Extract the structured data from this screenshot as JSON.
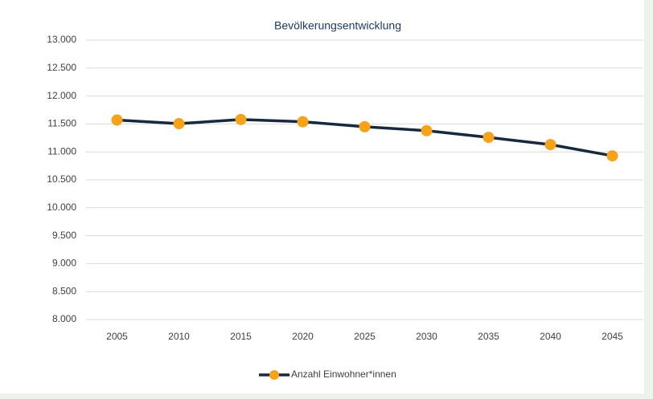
{
  "chart_data": {
    "type": "line",
    "title": "Bevölkerungsentwicklung",
    "categories": [
      "2005",
      "2010",
      "2015",
      "2020",
      "2025",
      "2030",
      "2035",
      "2040",
      "2045"
    ],
    "series": [
      {
        "name": "Anzahl Einwohner*innen",
        "color": "#17293f",
        "marker_color": "#f7a21b",
        "values": [
          11570,
          11505,
          11580,
          11540,
          11450,
          11380,
          11260,
          11130,
          10930
        ]
      }
    ],
    "ylim": [
      8000,
      13000
    ],
    "yticks": [
      {
        "value": 8000,
        "label": "8.000"
      },
      {
        "value": 8500,
        "label": "8.500"
      },
      {
        "value": 9000,
        "label": "9.000"
      },
      {
        "value": 9500,
        "label": "9.500"
      },
      {
        "value": 10000,
        "label": "10.000"
      },
      {
        "value": 10500,
        "label": "10.500"
      },
      {
        "value": 11000,
        "label": "11.000"
      },
      {
        "value": 11500,
        "label": "11.500"
      },
      {
        "value": 12000,
        "label": "12.000"
      },
      {
        "value": 12500,
        "label": "12.500"
      },
      {
        "value": 13000,
        "label": "13.000"
      }
    ],
    "grid": true,
    "legend": "bottom"
  }
}
